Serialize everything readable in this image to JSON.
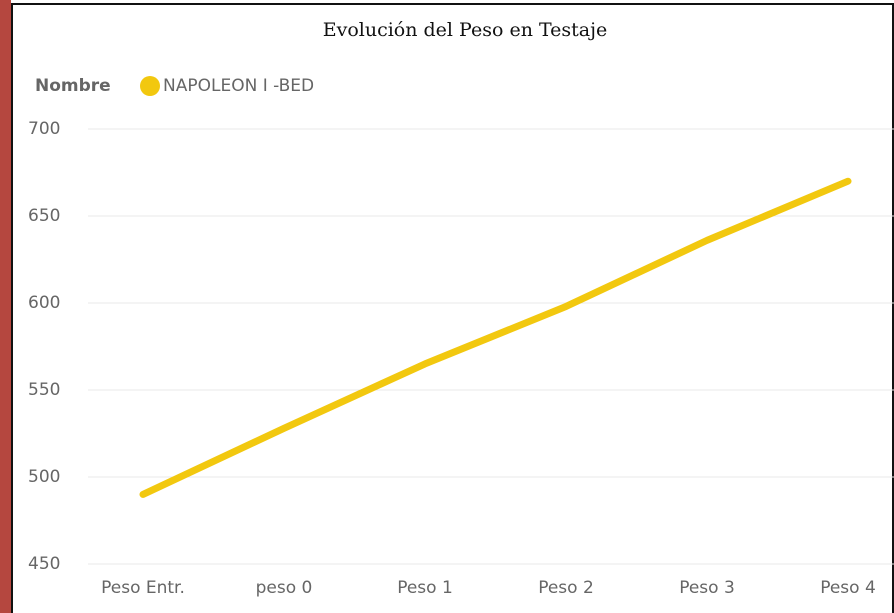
{
  "chart_data": {
    "type": "line",
    "title": "Evolución del Peso en Testaje",
    "legend_title": "Nombre",
    "categories": [
      "Peso Entr.",
      "peso 0",
      "Peso 1",
      "Peso 2",
      "Peso 3",
      "Peso 4"
    ],
    "series": [
      {
        "name": "NAPOLEON I -BED",
        "color": "#F2C80F",
        "values": [
          490,
          528,
          565,
          598,
          636,
          670
        ]
      }
    ],
    "ylim": [
      450,
      700
    ],
    "yticks": [
      450,
      500,
      550,
      600,
      650,
      700
    ],
    "grid": true
  }
}
